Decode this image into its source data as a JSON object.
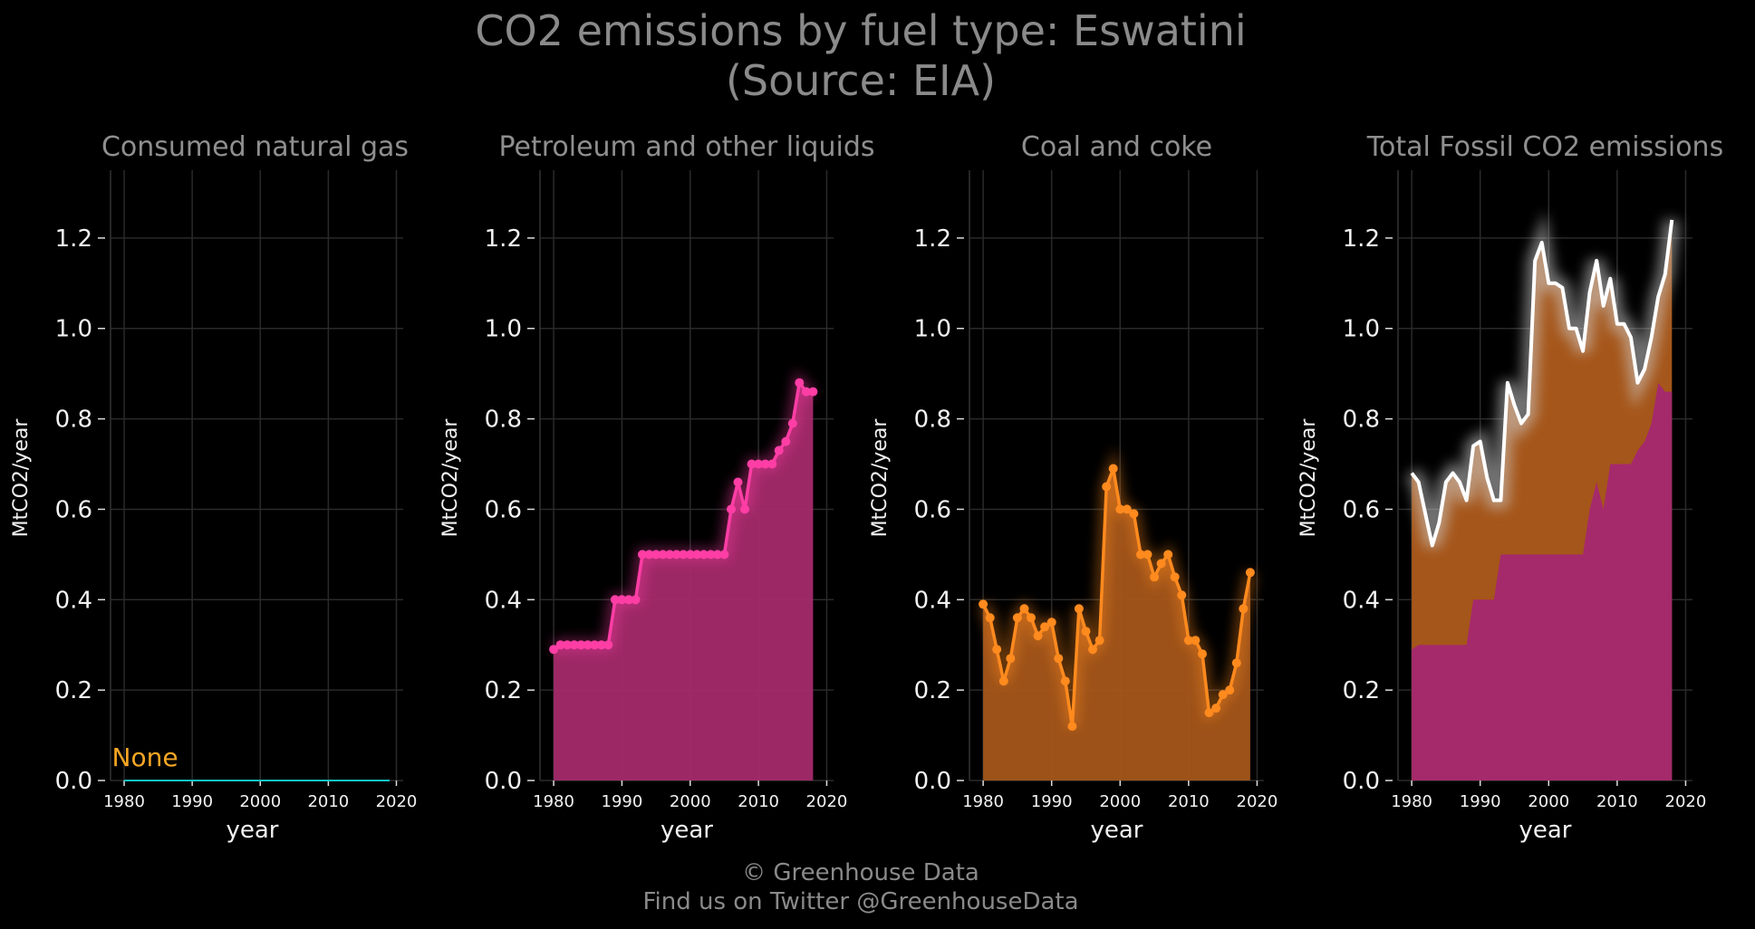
{
  "title": {
    "line1": "CO2 emissions by fuel type: Eswatini",
    "line2": "(Source: EIA)"
  },
  "footer": {
    "line1": "© Greenhouse Data",
    "line2": "Find us on Twitter @GreenhouseData"
  },
  "colors": {
    "background": "#000000",
    "gas": "#17c3c3",
    "gas_label": "#f5a623",
    "petroleum": "#ff3ea5",
    "petroleum_fill": "#a52a6b",
    "coal": "#ff8a1e",
    "coal_fill": "#a5561a",
    "total": "#ffffff"
  },
  "chart_data": [
    {
      "type": "line",
      "title": "Consumed natural gas",
      "xlabel": "year",
      "ylabel": "MtCO2/year",
      "xlim": [
        1978,
        2021
      ],
      "ylim": [
        0,
        1.35
      ],
      "xticks": [
        "1980",
        "1990",
        "2000",
        "2010",
        "2020"
      ],
      "yticks": [
        "0.0",
        "0.2",
        "0.4",
        "0.6",
        "0.8",
        "1.0",
        "1.2"
      ],
      "grid": true,
      "annotation": "None",
      "series": [
        {
          "x": [
            1980,
            2019
          ],
          "values": [
            0,
            0
          ]
        }
      ]
    },
    {
      "type": "area",
      "title": "Petroleum and other liquids",
      "xlabel": "year",
      "ylabel": "MtCO2/year",
      "xlim": [
        1978,
        2021
      ],
      "ylim": [
        0,
        1.35
      ],
      "xticks": [
        "1980",
        "1990",
        "2000",
        "2010",
        "2020"
      ],
      "yticks": [
        "0.0",
        "0.2",
        "0.4",
        "0.6",
        "0.8",
        "1.0",
        "1.2"
      ],
      "grid": true,
      "series": [
        {
          "x": [
            1980,
            1981,
            1982,
            1983,
            1984,
            1985,
            1986,
            1987,
            1988,
            1989,
            1990,
            1991,
            1992,
            1993,
            1994,
            1995,
            1996,
            1997,
            1998,
            1999,
            2000,
            2001,
            2002,
            2003,
            2004,
            2005,
            2006,
            2007,
            2008,
            2009,
            2010,
            2011,
            2012,
            2013,
            2014,
            2015,
            2016,
            2017,
            2018
          ],
          "values": [
            0.29,
            0.3,
            0.3,
            0.3,
            0.3,
            0.3,
            0.3,
            0.3,
            0.3,
            0.4,
            0.4,
            0.4,
            0.4,
            0.5,
            0.5,
            0.5,
            0.5,
            0.5,
            0.5,
            0.5,
            0.5,
            0.5,
            0.5,
            0.5,
            0.5,
            0.5,
            0.6,
            0.66,
            0.6,
            0.7,
            0.7,
            0.7,
            0.7,
            0.73,
            0.75,
            0.79,
            0.88,
            0.86,
            0.86
          ]
        }
      ]
    },
    {
      "type": "area",
      "title": "Coal and coke",
      "xlabel": "year",
      "ylabel": "MtCO2/year",
      "xlim": [
        1978,
        2021
      ],
      "ylim": [
        0,
        1.35
      ],
      "xticks": [
        "1980",
        "1990",
        "2000",
        "2010",
        "2020"
      ],
      "yticks": [
        "0.0",
        "0.2",
        "0.4",
        "0.6",
        "0.8",
        "1.0",
        "1.2"
      ],
      "grid": true,
      "series": [
        {
          "x": [
            1980,
            1981,
            1982,
            1983,
            1984,
            1985,
            1986,
            1987,
            1988,
            1989,
            1990,
            1991,
            1992,
            1993,
            1994,
            1995,
            1996,
            1997,
            1998,
            1999,
            2000,
            2001,
            2002,
            2003,
            2004,
            2005,
            2006,
            2007,
            2008,
            2009,
            2010,
            2011,
            2012,
            2013,
            2014,
            2015,
            2016,
            2017,
            2018,
            2019
          ],
          "values": [
            0.39,
            0.36,
            0.29,
            0.22,
            0.27,
            0.36,
            0.38,
            0.36,
            0.32,
            0.34,
            0.35,
            0.27,
            0.22,
            0.12,
            0.38,
            0.33,
            0.29,
            0.31,
            0.65,
            0.69,
            0.6,
            0.6,
            0.59,
            0.5,
            0.5,
            0.45,
            0.48,
            0.5,
            0.45,
            0.41,
            0.31,
            0.31,
            0.28,
            0.15,
            0.16,
            0.19,
            0.2,
            0.26,
            0.38,
            0.46
          ]
        }
      ]
    },
    {
      "type": "area",
      "title": "Total Fossil CO2 emissions",
      "xlabel": "year",
      "ylabel": "MtCO2/year",
      "xlim": [
        1978,
        2021
      ],
      "ylim": [
        0,
        1.35
      ],
      "xticks": [
        "1980",
        "1990",
        "2000",
        "2010",
        "2020"
      ],
      "yticks": [
        "0.0",
        "0.2",
        "0.4",
        "0.6",
        "0.8",
        "1.0",
        "1.2"
      ],
      "grid": true,
      "series": [
        {
          "x": [
            1980,
            1981,
            1982,
            1983,
            1984,
            1985,
            1986,
            1987,
            1988,
            1989,
            1990,
            1991,
            1992,
            1993,
            1994,
            1995,
            1996,
            1997,
            1998,
            1999,
            2000,
            2001,
            2002,
            2003,
            2004,
            2005,
            2006,
            2007,
            2008,
            2009,
            2010,
            2011,
            2012,
            2013,
            2014,
            2015,
            2016,
            2017,
            2018
          ],
          "values": [
            0.68,
            0.66,
            0.59,
            0.52,
            0.57,
            0.66,
            0.68,
            0.66,
            0.62,
            0.74,
            0.75,
            0.67,
            0.62,
            0.62,
            0.88,
            0.83,
            0.79,
            0.81,
            1.15,
            1.19,
            1.1,
            1.1,
            1.09,
            1.0,
            1.0,
            0.95,
            1.08,
            1.15,
            1.05,
            1.11,
            1.01,
            1.01,
            0.98,
            0.88,
            0.91,
            0.98,
            1.07,
            1.12,
            1.24
          ]
        }
      ]
    }
  ]
}
